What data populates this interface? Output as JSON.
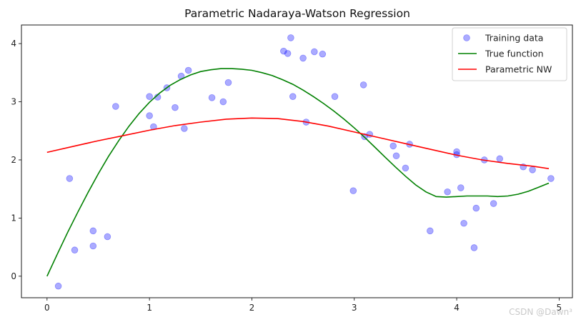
{
  "chart_data": {
    "type": "scatter",
    "title": "Parametric Nadaraya-Watson Regression",
    "xlabel": "",
    "ylabel": "",
    "xlim": [
      -0.25,
      5.13
    ],
    "ylim": [
      -0.37,
      4.32
    ],
    "xticks": [
      0,
      1,
      2,
      3,
      4,
      5
    ],
    "yticks": [
      0,
      1,
      2,
      3,
      4
    ],
    "grid": false,
    "legend_position": "top-right",
    "series": [
      {
        "name": "Training data",
        "kind": "scatter",
        "color": "#0000ff",
        "x": [
          0.11,
          0.22,
          0.27,
          0.45,
          0.45,
          0.59,
          0.67,
          1.0,
          1.0,
          1.04,
          1.08,
          1.17,
          1.25,
          1.31,
          1.34,
          1.38,
          1.61,
          1.72,
          1.77,
          2.31,
          2.35,
          2.38,
          2.4,
          2.5,
          2.53,
          2.61,
          2.69,
          2.81,
          2.99,
          3.09,
          3.1,
          3.15,
          3.38,
          3.41,
          3.5,
          3.54,
          3.74,
          3.91,
          4.0,
          4.0,
          4.04,
          4.07,
          4.17,
          4.19,
          4.27,
          4.36,
          4.42,
          4.65,
          4.74,
          4.92
        ],
        "y": [
          -0.17,
          1.68,
          0.45,
          0.78,
          0.52,
          0.68,
          2.92,
          2.76,
          3.09,
          2.57,
          3.08,
          3.24,
          2.9,
          3.44,
          2.54,
          3.54,
          3.07,
          3.0,
          3.33,
          3.87,
          3.83,
          4.1,
          3.09,
          3.75,
          2.65,
          3.86,
          3.82,
          3.09,
          1.47,
          3.29,
          2.4,
          2.44,
          2.24,
          2.07,
          1.86,
          2.27,
          0.78,
          1.45,
          2.14,
          2.09,
          1.52,
          0.91,
          0.49,
          1.17,
          2.0,
          1.25,
          2.02,
          1.88,
          1.83,
          1.68
        ]
      },
      {
        "name": "True function",
        "kind": "line",
        "color": "#008000",
        "x": [
          0.0,
          0.1,
          0.2,
          0.3,
          0.4,
          0.5,
          0.6,
          0.7,
          0.8,
          0.9,
          1.0,
          1.1,
          1.2,
          1.3,
          1.4,
          1.5,
          1.6,
          1.7,
          1.8,
          1.9,
          2.0,
          2.1,
          2.2,
          2.3,
          2.4,
          2.5,
          2.6,
          2.7,
          2.8,
          2.9,
          3.0,
          3.1,
          3.2,
          3.3,
          3.4,
          3.5,
          3.6,
          3.7,
          3.8,
          3.9,
          4.0,
          4.1,
          4.2,
          4.3,
          4.4,
          4.5,
          4.6,
          4.7,
          4.8,
          4.9
        ],
        "y": [
          0.0,
          0.38,
          0.75,
          1.1,
          1.44,
          1.76,
          2.06,
          2.33,
          2.58,
          2.8,
          2.99,
          3.15,
          3.28,
          3.38,
          3.46,
          3.52,
          3.55,
          3.57,
          3.57,
          3.56,
          3.54,
          3.5,
          3.45,
          3.38,
          3.3,
          3.2,
          3.09,
          2.97,
          2.84,
          2.7,
          2.55,
          2.39,
          2.22,
          2.05,
          1.88,
          1.72,
          1.57,
          1.45,
          1.37,
          1.36,
          1.37,
          1.38,
          1.38,
          1.38,
          1.37,
          1.38,
          1.41,
          1.46,
          1.53,
          1.6
        ]
      },
      {
        "name": "Parametric NW",
        "kind": "line",
        "color": "#ff0000",
        "x": [
          0.0,
          0.25,
          0.5,
          0.75,
          1.0,
          1.25,
          1.5,
          1.75,
          2.0,
          2.25,
          2.5,
          2.75,
          3.0,
          3.25,
          3.5,
          3.75,
          4.0,
          4.25,
          4.5,
          4.75,
          4.9
        ],
        "y": [
          2.13,
          2.23,
          2.33,
          2.42,
          2.51,
          2.59,
          2.65,
          2.7,
          2.72,
          2.71,
          2.66,
          2.58,
          2.48,
          2.38,
          2.28,
          2.18,
          2.08,
          2.0,
          1.94,
          1.89,
          1.85
        ]
      }
    ]
  },
  "watermark": "CSDN @Dawn³"
}
